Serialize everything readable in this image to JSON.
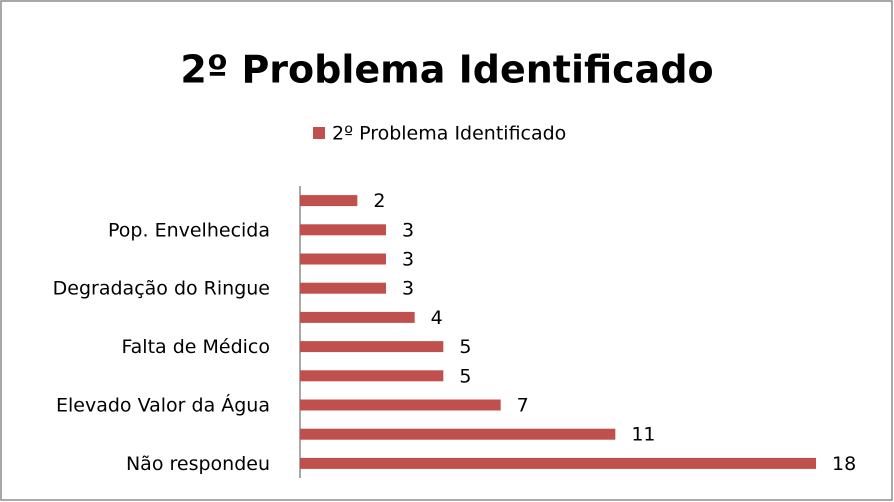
{
  "chart_data": {
    "type": "bar",
    "orientation": "horizontal",
    "title": "2º Problema Identificado",
    "series": [
      {
        "name": "2º Problema Identificado",
        "color": "#c0504d",
        "values": [
          18,
          11,
          7,
          5,
          5,
          4,
          3,
          3,
          3,
          2
        ]
      }
    ],
    "categories": [
      "Não respondeu",
      null,
      "Elevado Valor da Água",
      null,
      "Falta de Médico",
      null,
      "Degradação do Ringue",
      null,
      "Pop. Envelhecida",
      null
    ],
    "legend": "top"
  }
}
